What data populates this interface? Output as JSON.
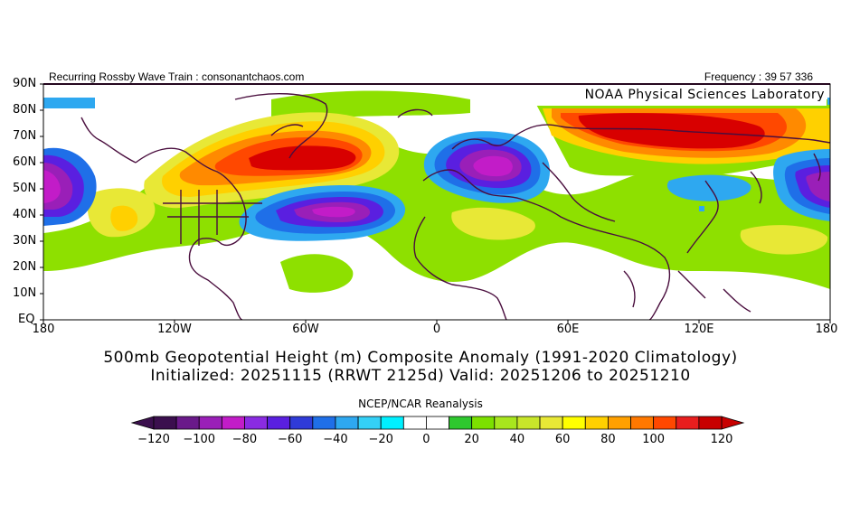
{
  "header": {
    "left": "Recurring Rossby Wave Train : consonantchaos.com",
    "right": "Frequency : 39 57 336"
  },
  "credit": "NOAA Physical Sciences Laboratory",
  "titles": {
    "line1": "500mb Geopotential Height (m) Composite Anomaly (1991-2020 Climatology)",
    "line2": "Initialized: 20251115 (RRWT 2125d) Valid: 20251206 to 20251210"
  },
  "colorbar": {
    "title": "NCEP/NCAR Reanalysis",
    "labels": [
      "-120",
      "-100",
      "-80",
      "-60",
      "-40",
      "-20",
      "0",
      "20",
      "40",
      "60",
      "80",
      "100",
      "120"
    ],
    "colors": [
      "#3b0f4e",
      "#6a1a8a",
      "#9a1fb8",
      "#c21cc8",
      "#8a2be2",
      "#5a1fe0",
      "#2f3bd8",
      "#1f6fe8",
      "#2ea8f0",
      "#34d0f6",
      "#00f0ff",
      "#ffffff",
      "#ffffff",
      "#2ec82e",
      "#7ce000",
      "#a8e61e",
      "#c8e62a",
      "#e8e836",
      "#ffff00",
      "#ffd000",
      "#ffa000",
      "#ff7800",
      "#ff4800",
      "#e81e1e",
      "#c80000"
    ],
    "left_arrow": "#3b0f4e",
    "right_arrow": "#c80000"
  },
  "map": {
    "y_labels": [
      "90N",
      "80N",
      "70N",
      "60N",
      "50N",
      "40N",
      "30N",
      "20N",
      "10N",
      "EQ"
    ],
    "x_labels": [
      "180",
      "120W",
      "60W",
      "0",
      "60E",
      "120E",
      "180"
    ]
  }
}
